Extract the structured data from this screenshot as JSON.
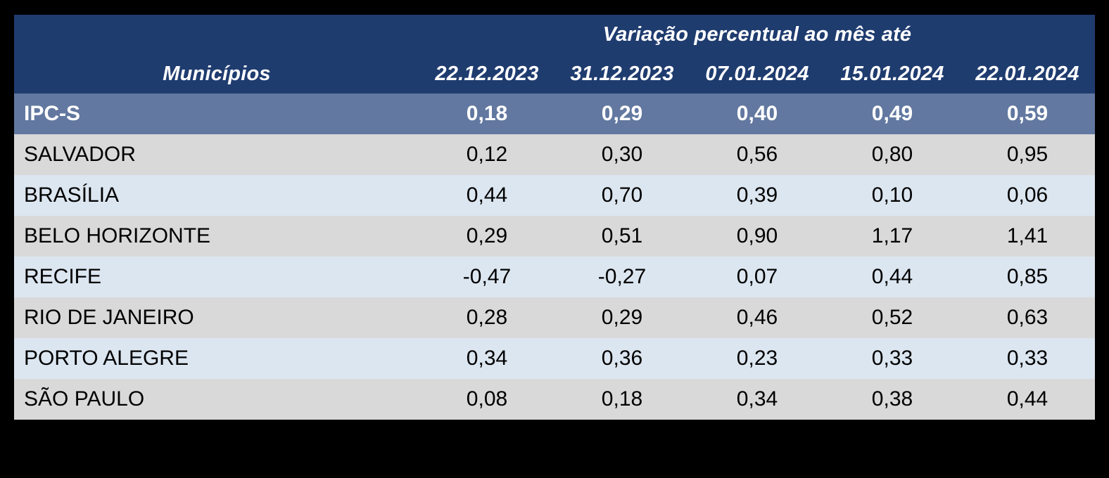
{
  "chart_data": {
    "type": "table",
    "title": "Variação percentual ao mês até",
    "row_header_label": "Municípios",
    "columns": [
      "22.12.2023",
      "31.12.2023",
      "07.01.2024",
      "15.01.2024",
      "22.01.2024"
    ],
    "rows": [
      {
        "label": "IPC-S",
        "highlighted": true,
        "values": [
          "0,18",
          "0,29",
          "0,40",
          "0,49",
          "0,59"
        ]
      },
      {
        "label": "SALVADOR",
        "highlighted": false,
        "values": [
          "0,12",
          "0,30",
          "0,56",
          "0,80",
          "0,95"
        ]
      },
      {
        "label": "BRASÍLIA",
        "highlighted": false,
        "values": [
          "0,44",
          "0,70",
          "0,39",
          "0,10",
          "0,06"
        ]
      },
      {
        "label": "BELO HORIZONTE",
        "highlighted": false,
        "values": [
          "0,29",
          "0,51",
          "0,90",
          "1,17",
          "1,41"
        ]
      },
      {
        "label": "RECIFE",
        "highlighted": false,
        "values": [
          "-0,47",
          "-0,27",
          "0,07",
          "0,44",
          "0,85"
        ]
      },
      {
        "label": "RIO DE JANEIRO",
        "highlighted": false,
        "values": [
          "0,28",
          "0,29",
          "0,46",
          "0,52",
          "0,63"
        ]
      },
      {
        "label": "PORTO ALEGRE",
        "highlighted": false,
        "values": [
          "0,34",
          "0,36",
          "0,23",
          "0,33",
          "0,33"
        ]
      },
      {
        "label": "SÃO PAULO",
        "highlighted": false,
        "values": [
          "0,08",
          "0,18",
          "0,34",
          "0,38",
          "0,44"
        ]
      }
    ],
    "layout": {
      "first_column_align": "left",
      "value_columns_align": "center",
      "gridlines": false
    }
  },
  "colors": {
    "background": "#000000",
    "header_bg": "#1F3C6F",
    "highlight_bg": "#6278A0",
    "row_gray": "#D9D9D9",
    "row_blue": "#DCE6F0",
    "header_text": "#FFFFFF",
    "body_text": "#000000"
  }
}
